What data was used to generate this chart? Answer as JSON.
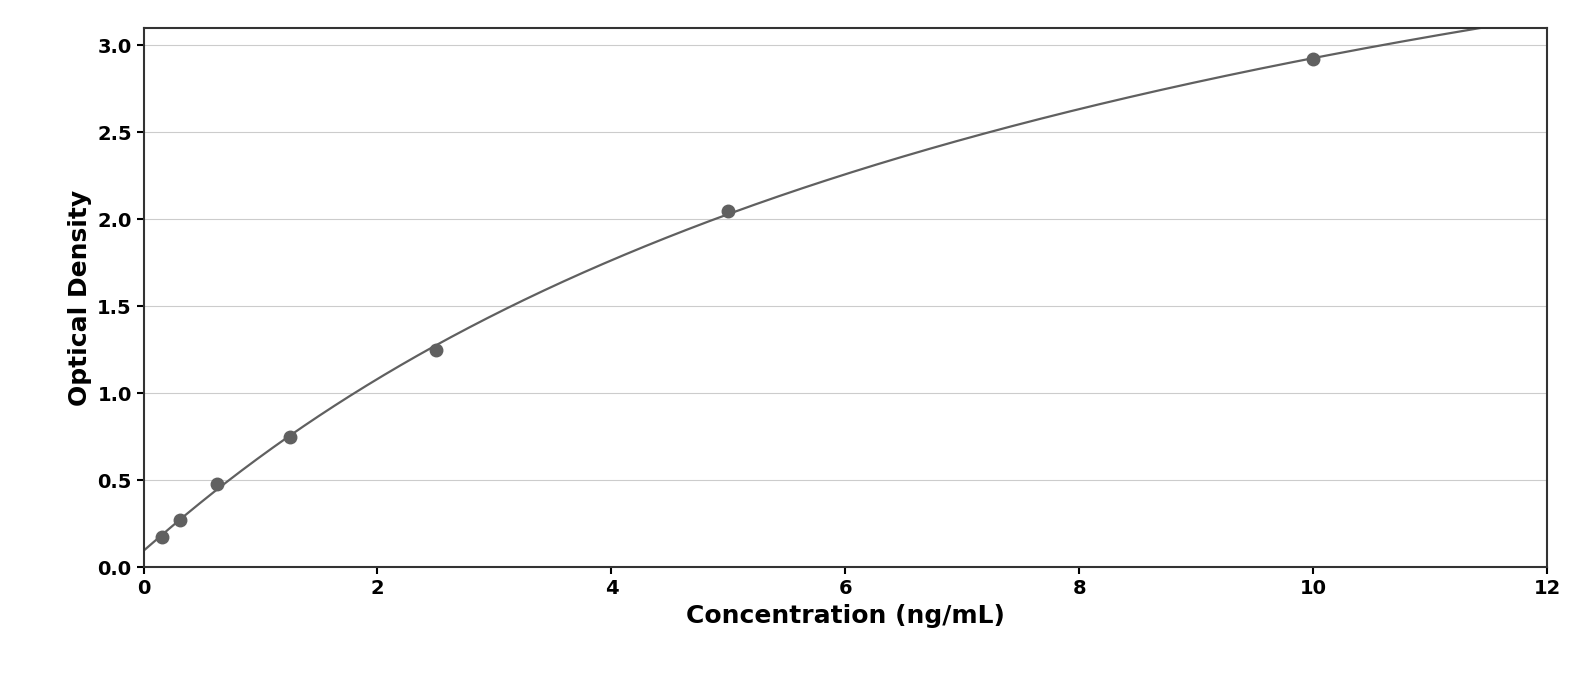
{
  "x_data": [
    0.156,
    0.313,
    0.625,
    1.25,
    2.5,
    5.0,
    10.0
  ],
  "y_data": [
    0.175,
    0.27,
    0.48,
    0.75,
    1.25,
    2.05,
    2.92
  ],
  "point_color": "#606060",
  "line_color": "#606060",
  "xlabel": "Concentration (ng/mL)",
  "ylabel": "Optical Density",
  "xlim": [
    0,
    12
  ],
  "ylim": [
    0,
    3.1
  ],
  "xticks": [
    0,
    2,
    4,
    6,
    8,
    10,
    12
  ],
  "yticks": [
    0,
    0.5,
    1.0,
    1.5,
    2.0,
    2.5,
    3.0
  ],
  "marker_size": 9,
  "line_width": 1.6,
  "xlabel_fontsize": 18,
  "ylabel_fontsize": 18,
  "tick_fontsize": 14,
  "grid_color": "#cccccc",
  "background_color": "#ffffff",
  "figure_bg": "#ffffff",
  "border_color": "#aaaaaa"
}
